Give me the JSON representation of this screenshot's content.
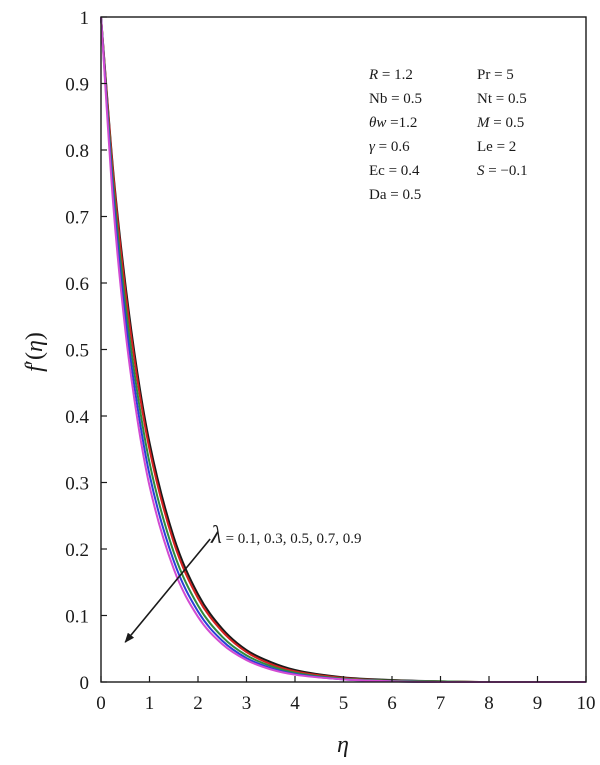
{
  "chart_data": {
    "type": "line",
    "xlabel": "η",
    "ylabel_main": "f",
    "ylabel_prime": "′",
    "ylabel_paren_open": "(",
    "ylabel_arg": "η",
    "ylabel_paren_close": ")",
    "xlim": [
      0,
      10
    ],
    "ylim": [
      0,
      1
    ],
    "x_ticks": [
      "0",
      "1",
      "2",
      "3",
      "4",
      "5",
      "6",
      "7",
      "8",
      "9",
      "10"
    ],
    "y_ticks": [
      "0",
      "0.1",
      "0.2",
      "0.3",
      "0.4",
      "0.5",
      "0.6",
      "0.7",
      "0.8",
      "0.9",
      "1"
    ],
    "grid": false,
    "parameters": [
      {
        "sym": "R",
        "italic": true,
        "val": " = 1.2"
      },
      {
        "sym": "Pr",
        "italic": false,
        "val": " = 5"
      },
      {
        "sym": "Nb",
        "italic": false,
        "val": " = 0.5"
      },
      {
        "sym": "Nt",
        "italic": false,
        "val": " = 0.5"
      },
      {
        "sym": "θw",
        "italic": true,
        "val": " =1.2"
      },
      {
        "sym": "M",
        "italic": true,
        "val": " = 0.5"
      },
      {
        "sym": "γ",
        "italic": true,
        "val": " = 0.6"
      },
      {
        "sym": "Le",
        "italic": false,
        "val": " = 2"
      },
      {
        "sym": "Ec",
        "italic": false,
        "val": " = 0.4"
      },
      {
        "sym": "S",
        "italic": true,
        "val": " = −0.1"
      },
      {
        "sym": "Da",
        "italic": false,
        "val": " = 0.5"
      }
    ],
    "annotation": {
      "symbol": "λ",
      "text": " = 0.1, 0.3, 0.5, 0.7, 0.9",
      "arrow_from": [
        2.25,
        0.215
      ],
      "arrow_to": [
        0.5,
        0.06
      ]
    },
    "series": [
      {
        "color": "#1a1a1a",
        "x": [
          0,
          0.25,
          0.5,
          0.75,
          1,
          1.5,
          2,
          2.5,
          3,
          3.5,
          4,
          5,
          6,
          7,
          8,
          10
        ],
        "y": [
          1,
          0.77,
          0.6,
          0.465,
          0.36,
          0.218,
          0.132,
          0.08,
          0.048,
          0.03,
          0.018,
          0.007,
          0.003,
          0.001,
          0,
          0
        ]
      },
      {
        "color": "#d42020",
        "x": [
          0,
          0.25,
          0.5,
          0.75,
          1,
          1.5,
          2,
          2.5,
          3,
          3.5,
          4,
          5,
          6,
          7,
          8,
          10
        ],
        "y": [
          1,
          0.765,
          0.59,
          0.455,
          0.35,
          0.21,
          0.126,
          0.076,
          0.045,
          0.027,
          0.016,
          0.006,
          0.002,
          0.001,
          0,
          0
        ]
      },
      {
        "color": "#2e8b3e",
        "x": [
          0,
          0.25,
          0.5,
          0.75,
          1,
          1.5,
          2,
          2.5,
          3,
          3.5,
          4,
          5,
          6,
          7,
          8,
          10
        ],
        "y": [
          1,
          0.75,
          0.57,
          0.435,
          0.33,
          0.195,
          0.115,
          0.068,
          0.04,
          0.024,
          0.014,
          0.005,
          0.002,
          0.001,
          0,
          0
        ]
      },
      {
        "color": "#2a3fd6",
        "x": [
          0,
          0.25,
          0.5,
          0.75,
          1,
          1.5,
          2,
          2.5,
          3,
          3.5,
          4,
          5,
          6,
          7,
          8,
          10
        ],
        "y": [
          1,
          0.735,
          0.55,
          0.415,
          0.312,
          0.182,
          0.106,
          0.062,
          0.036,
          0.021,
          0.012,
          0.004,
          0.001,
          0,
          0,
          0
        ]
      },
      {
        "color": "#d24bd2",
        "x": [
          0,
          0.25,
          0.5,
          0.75,
          1,
          1.5,
          2,
          2.5,
          3,
          3.5,
          4,
          5,
          6,
          7,
          8,
          10
        ],
        "y": [
          1,
          0.72,
          0.53,
          0.395,
          0.295,
          0.17,
          0.098,
          0.057,
          0.033,
          0.019,
          0.011,
          0.004,
          0.001,
          0,
          0,
          0
        ]
      }
    ]
  }
}
